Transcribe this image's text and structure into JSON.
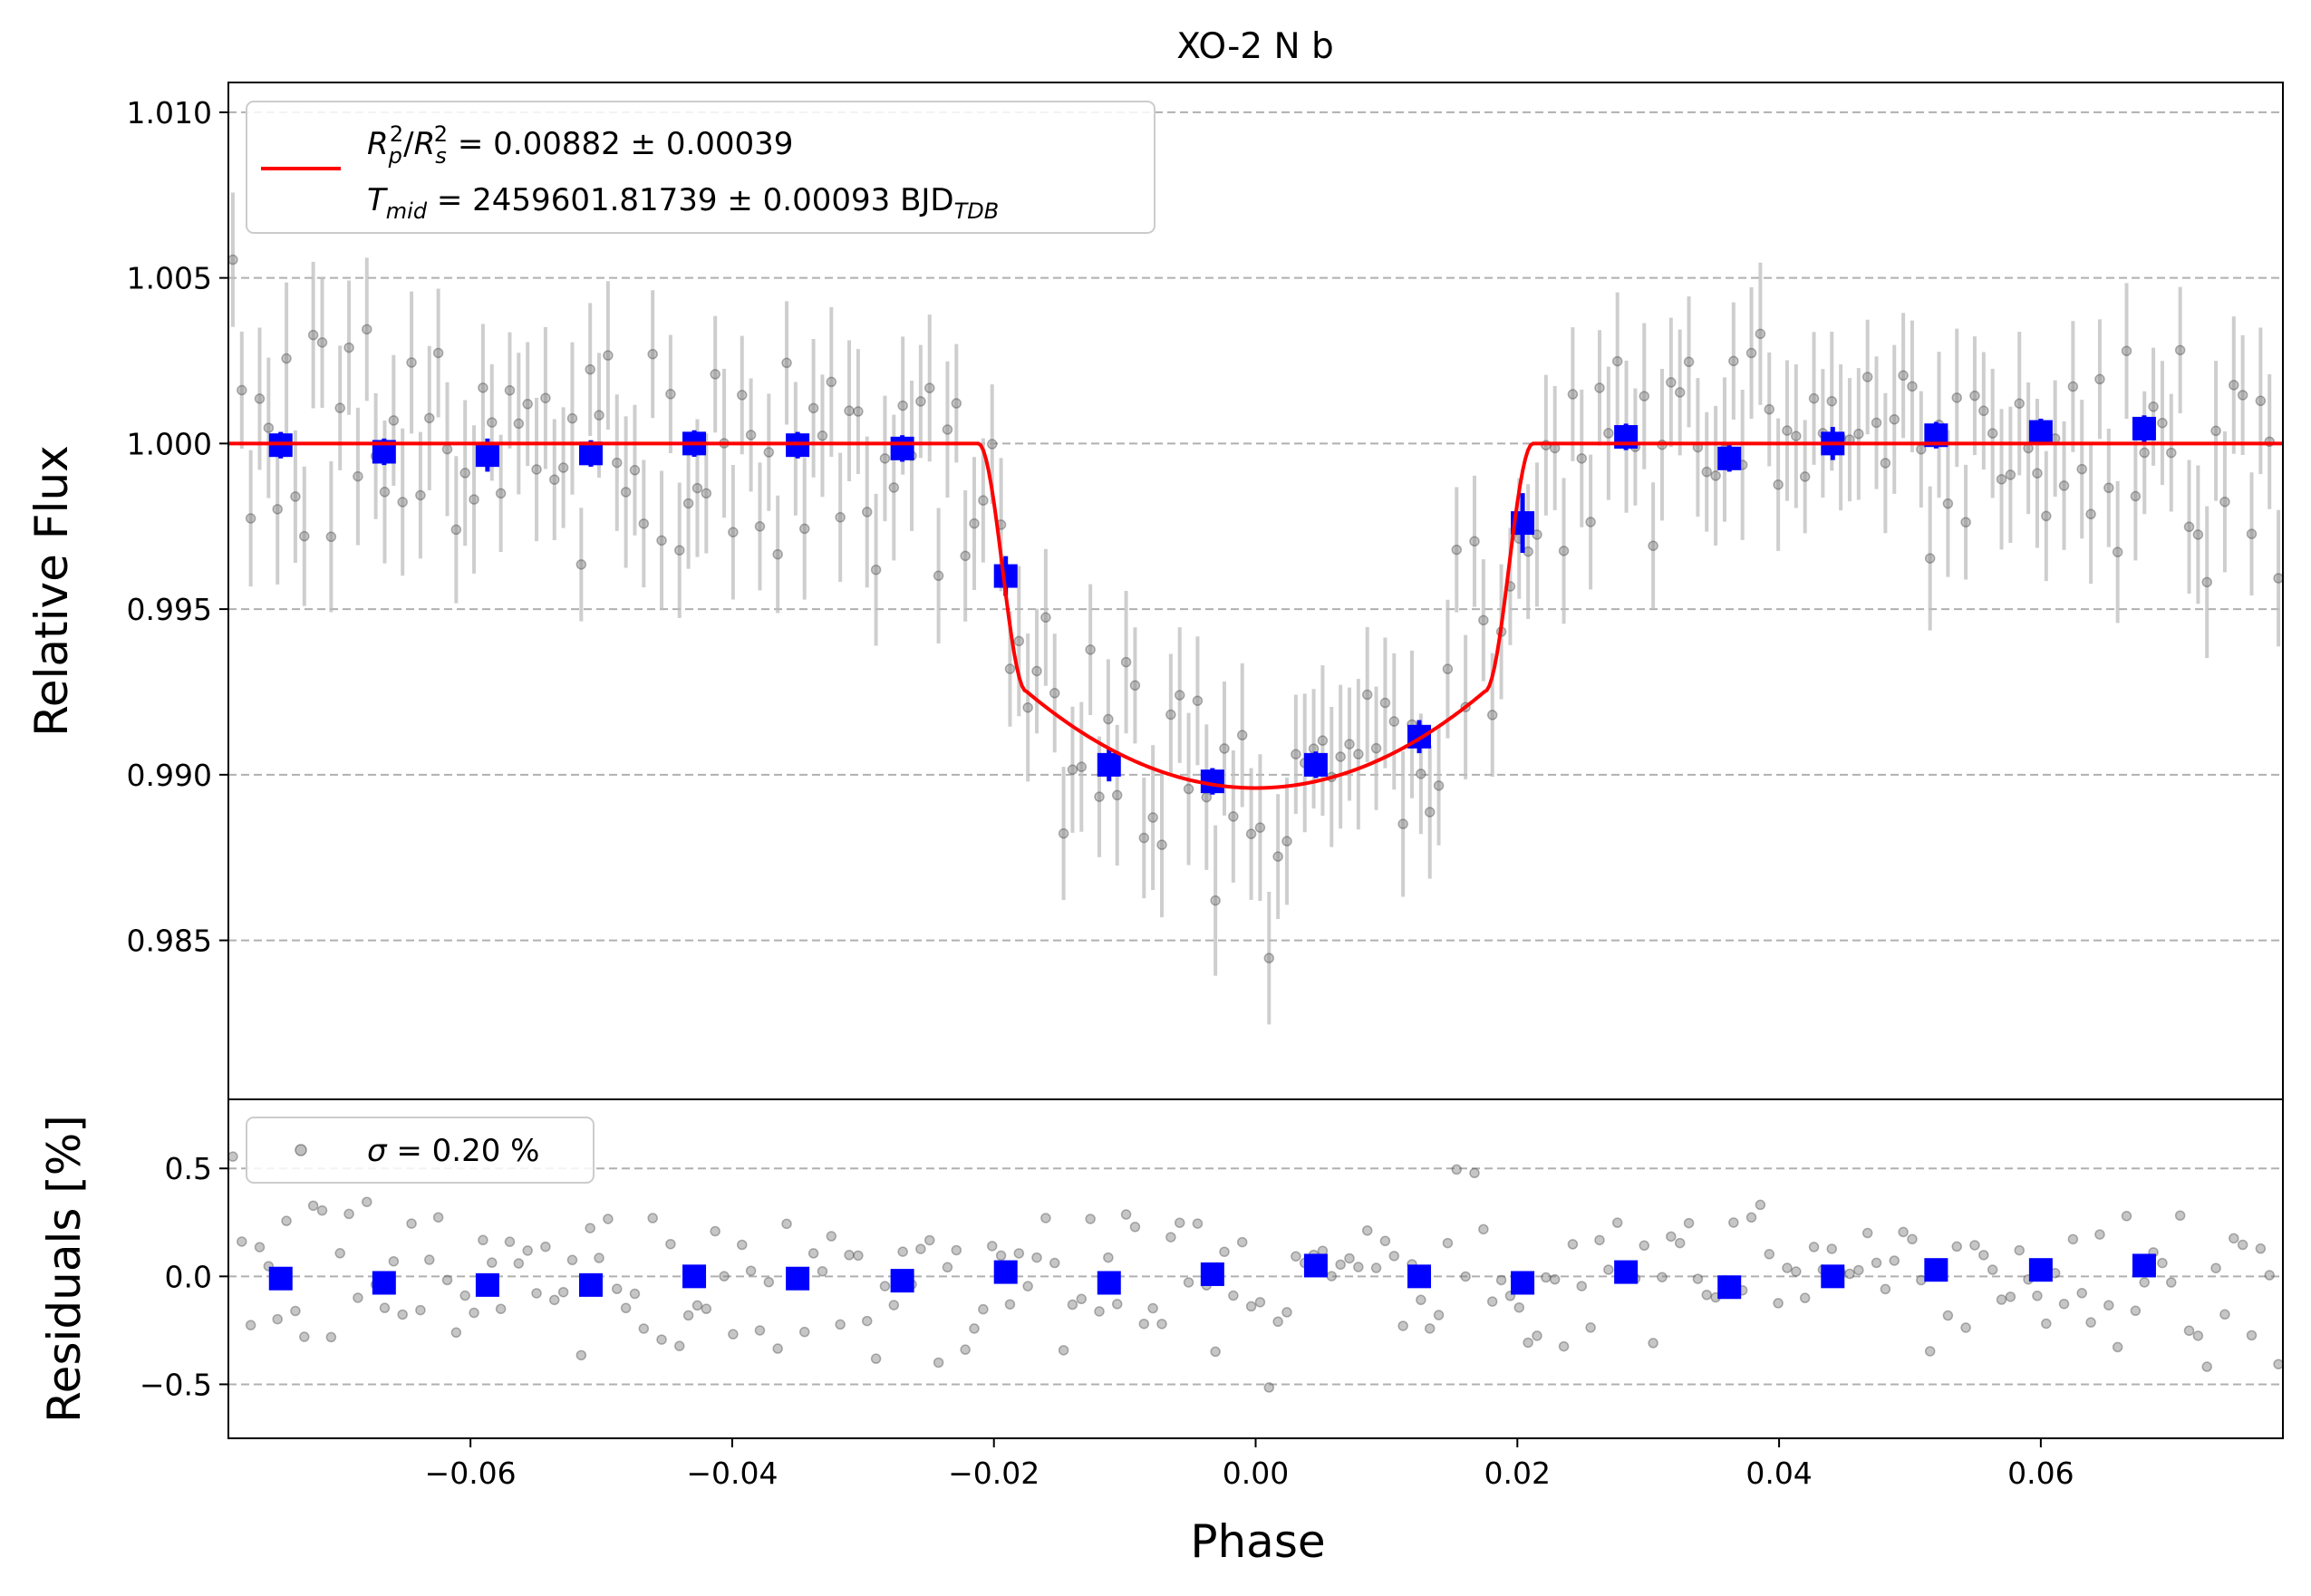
{
  "chart_data": [
    {
      "type": "scatter",
      "panel": "light-curve",
      "title": "XO-2 N b",
      "xlabel": "Phase",
      "ylabel": "Relative Flux",
      "xlim": [
        -0.0785,
        0.0785
      ],
      "ylim": [
        0.9802,
        1.0109
      ],
      "y_ticks": [
        0.985,
        0.99,
        0.995,
        1.0,
        1.005,
        1.01
      ],
      "y_tick_labels": [
        "0.985",
        "0.990",
        "0.995",
        "1.000",
        "1.005",
        "1.010"
      ],
      "grid": "horizontal dashed",
      "legend_position": "top-left",
      "legend": {
        "line1": {
          "symbol": "R",
          "sub_p": "p",
          "sup": "2",
          "slash": "/",
          "sub_s": "s",
          "rest": " = 0.00882 ± 0.00039"
        },
        "line2": {
          "symbol": "T",
          "sub": "mid",
          "rest": " = 2459601.81739 ± 0.00093 BJD",
          "unit_sub": "TDB"
        }
      },
      "model": {
        "color": "#ff0000",
        "baseline": 1.0,
        "depth_min": 0.9896,
        "ingress_start": -0.0212,
        "full_start": -0.0175,
        "full_end": 0.0175,
        "egress_end": 0.0212
      },
      "binned": {
        "color": "#0000ff",
        "x": [
          -0.0745,
          -0.0666,
          -0.0587,
          -0.0508,
          -0.0429,
          -0.035,
          -0.027,
          -0.0191,
          -0.0112,
          -0.0033,
          0.0046,
          0.0125,
          0.0204,
          0.0283,
          0.0362,
          0.0441,
          0.052,
          0.06,
          0.0679
        ],
        "y": [
          0.99995,
          0.99975,
          0.99965,
          0.9997,
          1.0,
          0.99995,
          0.99985,
          0.996,
          0.9903,
          0.9898,
          0.9903,
          0.99115,
          0.9976,
          1.0002,
          0.99955,
          1.0,
          1.00025,
          1.00035,
          1.00045
        ],
        "err": [
          0.0004,
          0.0004,
          0.0005,
          0.0004,
          0.0004,
          0.0004,
          0.0004,
          0.0006,
          0.0005,
          0.0004,
          0.0004,
          0.0005,
          0.0009,
          0.0004,
          0.0004,
          0.0005,
          0.0004,
          0.0004,
          0.0004
        ]
      },
      "raw": {
        "color": "#808080",
        "n_points": 230,
        "x_range": [
          -0.0785,
          0.0785
        ],
        "scatter_sigma": 0.002,
        "error_bar": 0.002
      }
    },
    {
      "type": "scatter",
      "panel": "residuals",
      "xlabel": "Phase",
      "ylabel": "Residuals [%]",
      "xlim": [
        -0.0785,
        0.0785
      ],
      "ylim": [
        -0.75,
        0.82
      ],
      "x_ticks": [
        -0.06,
        -0.04,
        -0.02,
        0.0,
        0.02,
        0.04,
        0.06
      ],
      "x_tick_labels": [
        "−0.06",
        "−0.04",
        "−0.02",
        "0.00",
        "0.02",
        "0.04",
        "0.06"
      ],
      "y_ticks": [
        -0.5,
        0.0,
        0.5
      ],
      "y_tick_labels": [
        "−0.5",
        "0.0",
        "0.5"
      ],
      "grid": "horizontal dashed",
      "legend_position": "top-left",
      "legend": {
        "symbol": "σ",
        "rest": " = 0.20 %"
      },
      "binned": {
        "color": "#0000ff",
        "x": [
          -0.0745,
          -0.0666,
          -0.0587,
          -0.0508,
          -0.0429,
          -0.035,
          -0.027,
          -0.0191,
          -0.0112,
          -0.0033,
          0.0046,
          0.0125,
          0.0204,
          0.0283,
          0.0362,
          0.0441,
          0.052,
          0.06,
          0.0679
        ],
        "y": [
          -0.01,
          -0.03,
          -0.04,
          -0.04,
          0.0,
          -0.01,
          -0.02,
          0.02,
          -0.03,
          0.01,
          0.05,
          0.0,
          -0.03,
          0.02,
          -0.05,
          0.0,
          0.03,
          0.03,
          0.05
        ]
      },
      "raw": {
        "color": "#808080",
        "n_points": 230,
        "scatter_sigma": 0.2
      }
    }
  ]
}
